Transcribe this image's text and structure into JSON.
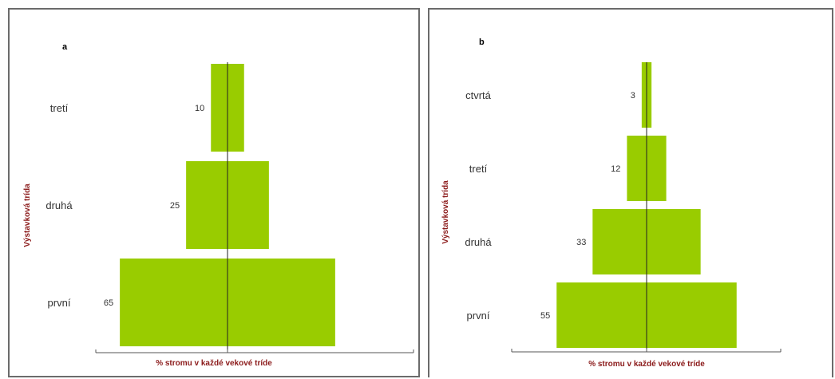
{
  "chart_data": [
    {
      "panel": "a",
      "type": "bar",
      "orientation": "horizontal-centered",
      "categories": [
        "první",
        "druhá",
        "tretí"
      ],
      "values": [
        65,
        25,
        10
      ],
      "xlabel": "% stromu v každé vekové tríde",
      "ylabel": "Výstavková trída",
      "color": "#99cc00",
      "grid": false
    },
    {
      "panel": "b",
      "type": "bar",
      "orientation": "horizontal-centered",
      "categories": [
        "první",
        "druhá",
        "tretí",
        "ctvrtá"
      ],
      "values": [
        55,
        33,
        12,
        3
      ],
      "xlabel": "% stromu v každé vekové tríde",
      "ylabel": "Výstavková trída",
      "color": "#99cc00",
      "grid": false
    }
  ]
}
